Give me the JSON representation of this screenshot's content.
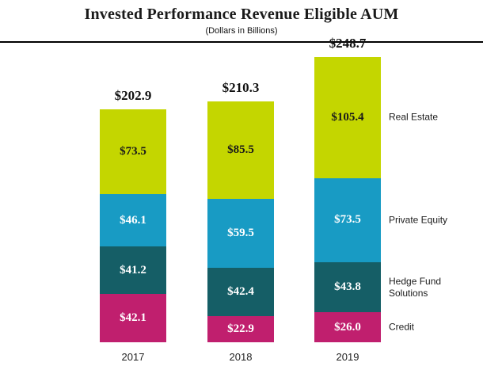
{
  "chart_data": {
    "type": "bar",
    "stacked": true,
    "title": "Invested Performance Revenue Eligible AUM",
    "subtitle": "(Dollars in Billions)",
    "categories": [
      "2017",
      "2018",
      "2019"
    ],
    "series": [
      {
        "name": "Credit",
        "color": "#c01f6e",
        "label_color": "#ffffff",
        "values": [
          42.1,
          22.9,
          26.0
        ]
      },
      {
        "name": "Hedge Fund Solutions",
        "color": "#155e66",
        "label_color": "#ffffff",
        "values": [
          41.2,
          42.4,
          43.8
        ]
      },
      {
        "name": "Private Equity",
        "color": "#189bc4",
        "label_color": "#ffffff",
        "values": [
          46.1,
          59.5,
          73.5
        ]
      },
      {
        "name": "Real Estate",
        "color": "#c4d600",
        "label_color": "#1a1a1a",
        "values": [
          73.5,
          85.5,
          105.4
        ]
      }
    ],
    "totals": [
      202.9,
      210.3,
      248.7
    ],
    "value_prefix": "$",
    "ylim": [
      0,
      260
    ],
    "legend_position": "right",
    "grid": false
  }
}
